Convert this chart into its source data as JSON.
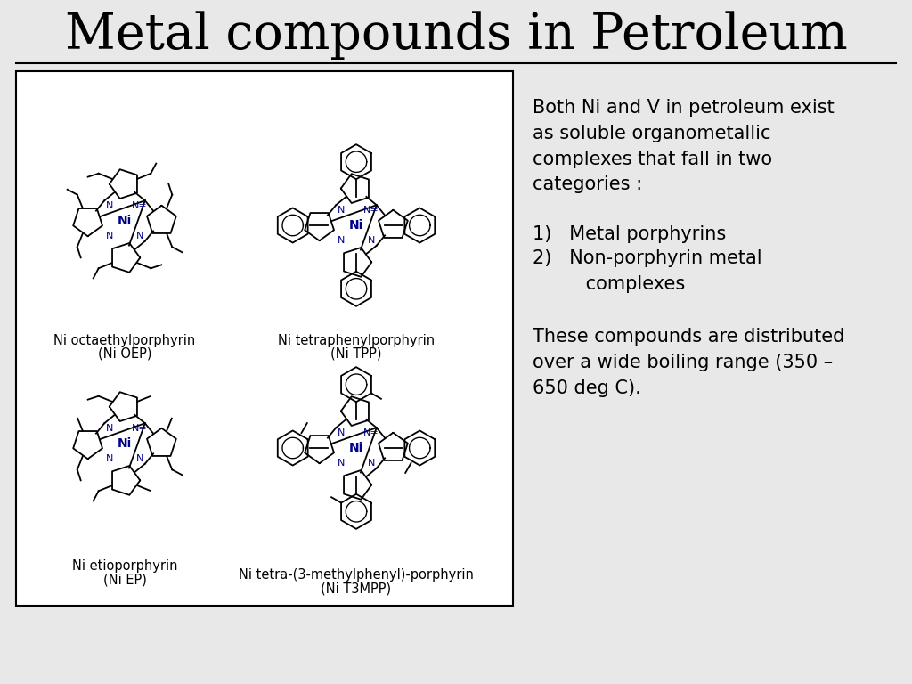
{
  "title": "Metal compounds in Petroleum",
  "slide_bg": "#e8e8e8",
  "title_fontsize": 40,
  "title_font": "serif",
  "box_bg": "#ffffff",
  "text_color": "#000000",
  "paragraph1": "Both Ni and V in petroleum exist\nas soluble organometallic\ncomplexes that fall in two\ncategories :",
  "list_item1": "1)   Metal porphyrins",
  "list_item2": "2)   Non-porphyrin metal\n         complexes",
  "paragraph2": "These compounds are distributed\nover a wide boiling range (350 –\n650 deg C).",
  "caption_tl_1": "Ni octaethylporphyrin",
  "caption_tl_2": "(Ni OEP)",
  "caption_tr_1": "Ni tetraphenylporphyrin",
  "caption_tr_2": "(Ni TPP)",
  "caption_bl_1": "Ni etioporphyrin",
  "caption_bl_2": "(Ni EP)",
  "caption_br_1": "Ni tetra-(3-methylphenyl)-porphyrin",
  "caption_br_2": "(Ni T3MPP)",
  "text_fontsize": 15,
  "caption_fontsize": 10.5,
  "ni_color": "#00008B",
  "n_color": "#00008B",
  "bond_color": "#000000"
}
